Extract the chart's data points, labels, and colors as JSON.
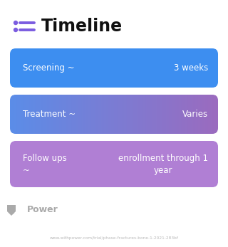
{
  "title": "Timeline",
  "background_color": "#ffffff",
  "rows": [
    {
      "left_label": "Screening ~",
      "right_label": "3 weeks",
      "gradient": false,
      "color_left": "#3d8ef0",
      "color_right": "#3d8ef0",
      "single_color": "#3d8ef0"
    },
    {
      "left_label": "Treatment ~",
      "right_label": "Varies",
      "gradient": true,
      "color_left": "#5b8de8",
      "color_right": "#9b6bbf"
    },
    {
      "left_label": "Follow ups\n~",
      "right_label": "enrollment through 1\nyear",
      "gradient": false,
      "single_color": "#b07fd4"
    }
  ],
  "icon_color": "#7b5ce0",
  "footer_logo_color": "#b0b0b0",
  "footer_text": "Power",
  "url_text": "www.withpower.com/trial/phase-fractures-bone-1-2021-283bf",
  "title_fontsize": 17,
  "label_fontsize": 8.5,
  "footer_fontsize": 9
}
